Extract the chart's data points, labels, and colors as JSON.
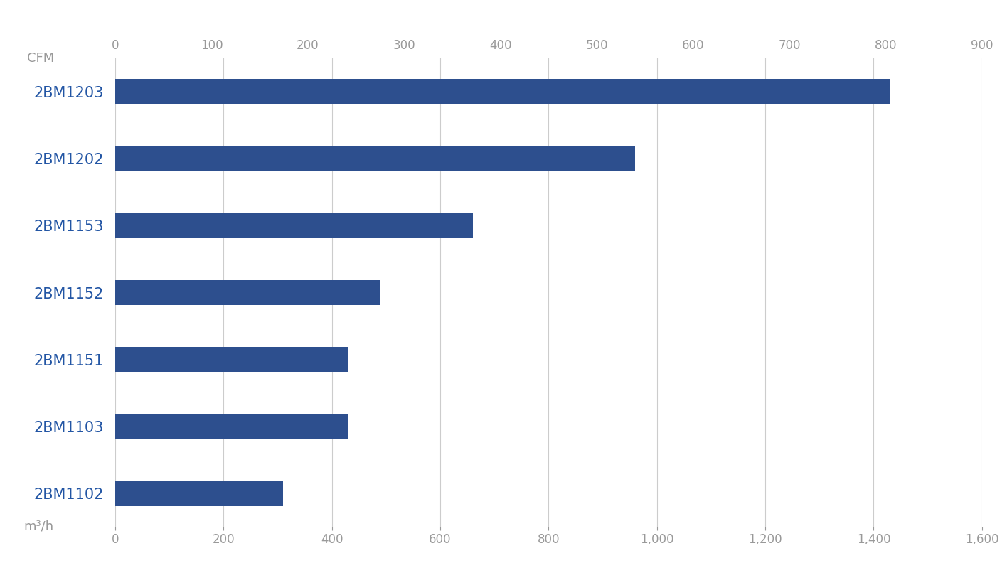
{
  "categories": [
    "2BM1203",
    "2BM1202",
    "2BM1153",
    "2BM1152",
    "2BM1151",
    "2BM1103",
    "2BM1102"
  ],
  "values_m3h": [
    1430,
    960,
    660,
    490,
    430,
    430,
    310
  ],
  "bar_color": "#2d4f8e",
  "background_color": "#ffffff",
  "label_color": "#2255a4",
  "axis_label_color": "#999999",
  "top_axis_label": "CFM",
  "bottom_axis_label": "m³/h",
  "xlim_m3h": [
    0,
    1600
  ],
  "xlim_cfm": [
    0,
    900
  ],
  "xticks_m3h": [
    0,
    200,
    400,
    600,
    800,
    1000,
    1200,
    1400,
    1600
  ],
  "xticks_cfm": [
    0,
    100,
    200,
    300,
    400,
    500,
    600,
    700,
    800,
    900
  ],
  "grid_color": "#cccccc",
  "bar_height": 0.38,
  "tick_fontsize": 12,
  "category_fontsize": 15,
  "axis_unit_fontsize": 13,
  "conversion_factor": 1.699
}
